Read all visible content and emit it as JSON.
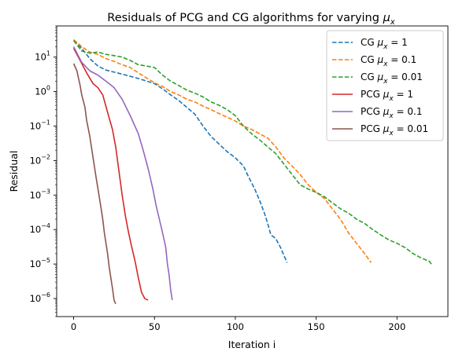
{
  "chart_data": {
    "type": "line",
    "title": "Residuals of PCG and CG algorithms for varying μ_x",
    "title_prefix": "Residuals of PCG and CG algorithms for varying ",
    "title_mu": "μ",
    "title_sub": "x",
    "xlabel": "Iteration i",
    "ylabel": "Residual",
    "yscale": "log",
    "xlim": [
      -10.5,
      231.5
    ],
    "ylim": [
      3e-07,
      80
    ],
    "xticks": [
      0,
      50,
      100,
      150,
      200
    ],
    "xtick_labels": [
      "0",
      "50",
      "100",
      "150",
      "200"
    ],
    "yticks_exponents": [
      -6,
      -5,
      -4,
      -3,
      -2,
      -1,
      0,
      1
    ],
    "ytick_labels": [
      {
        "base": "10",
        "exp": "−6"
      },
      {
        "base": "10",
        "exp": "−5"
      },
      {
        "base": "10",
        "exp": "−4"
      },
      {
        "base": "10",
        "exp": "−3"
      },
      {
        "base": "10",
        "exp": "−2"
      },
      {
        "base": "10",
        "exp": "−1"
      },
      {
        "base": "10",
        "exp": "0"
      },
      {
        "base": "10",
        "exp": "1"
      }
    ],
    "grid": false,
    "legend_position": "upper right",
    "series": [
      {
        "name": "CG μ_x = 1",
        "label_prefix": "CG ",
        "label_value": "1",
        "color": "#1f77b4",
        "dash": true,
        "points": [
          [
            0,
            30
          ],
          [
            5,
            18
          ],
          [
            10,
            9
          ],
          [
            15,
            5.5
          ],
          [
            20,
            4.2
          ],
          [
            30,
            3.2
          ],
          [
            40,
            2.4
          ],
          [
            50,
            1.7
          ],
          [
            55,
            1.2
          ],
          [
            60,
            0.8
          ],
          [
            65,
            0.55
          ],
          [
            70,
            0.35
          ],
          [
            75,
            0.22
          ],
          [
            80,
            0.1
          ],
          [
            85,
            0.05
          ],
          [
            90,
            0.03
          ],
          [
            95,
            0.018
          ],
          [
            100,
            0.012
          ],
          [
            105,
            0.007
          ],
          [
            108,
            0.0035
          ],
          [
            112,
            0.0015
          ],
          [
            115,
            0.0007
          ],
          [
            118,
            0.0003
          ],
          [
            120,
            0.00015
          ],
          [
            122,
            7e-05
          ],
          [
            125,
            5.5e-05
          ],
          [
            128,
            3e-05
          ],
          [
            130,
            1.8e-05
          ],
          [
            132,
            1.1e-05
          ]
        ]
      },
      {
        "name": "CG μ_x = 0.1",
        "label_prefix": "CG ",
        "label_value": "0.1",
        "color": "#ff7f0e",
        "dash": true,
        "points": [
          [
            0,
            32
          ],
          [
            5,
            20
          ],
          [
            10,
            14
          ],
          [
            15,
            12
          ],
          [
            20,
            9
          ],
          [
            25,
            7.5
          ],
          [
            30,
            6
          ],
          [
            35,
            5
          ],
          [
            40,
            3.5
          ],
          [
            45,
            2.5
          ],
          [
            50,
            1.8
          ],
          [
            55,
            1.4
          ],
          [
            60,
            1.0
          ],
          [
            65,
            0.8
          ],
          [
            70,
            0.6
          ],
          [
            75,
            0.5
          ],
          [
            80,
            0.38
          ],
          [
            85,
            0.3
          ],
          [
            90,
            0.23
          ],
          [
            95,
            0.18
          ],
          [
            100,
            0.14
          ],
          [
            105,
            0.1
          ],
          [
            110,
            0.08
          ],
          [
            115,
            0.06
          ],
          [
            120,
            0.045
          ],
          [
            125,
            0.025
          ],
          [
            130,
            0.012
          ],
          [
            135,
            0.007
          ],
          [
            140,
            0.004
          ],
          [
            145,
            0.002
          ],
          [
            150,
            0.0012
          ],
          [
            155,
            0.0008
          ],
          [
            160,
            0.0004
          ],
          [
            165,
            0.0002
          ],
          [
            170,
            8e-05
          ],
          [
            175,
            4e-05
          ],
          [
            180,
            2e-05
          ],
          [
            184,
            1.1e-05
          ]
        ]
      },
      {
        "name": "CG μ_x = 0.01",
        "label_prefix": "CG ",
        "label_value": "0.01",
        "color": "#2ca02c",
        "dash": true,
        "points": [
          [
            0,
            30
          ],
          [
            5,
            15
          ],
          [
            10,
            13
          ],
          [
            15,
            14
          ],
          [
            20,
            12
          ],
          [
            25,
            11
          ],
          [
            30,
            10
          ],
          [
            35,
            8
          ],
          [
            40,
            6
          ],
          [
            45,
            5.5
          ],
          [
            50,
            5
          ],
          [
            55,
            3
          ],
          [
            60,
            2
          ],
          [
            65,
            1.5
          ],
          [
            70,
            1.1
          ],
          [
            75,
            0.9
          ],
          [
            80,
            0.7
          ],
          [
            85,
            0.5
          ],
          [
            90,
            0.4
          ],
          [
            95,
            0.3
          ],
          [
            100,
            0.2
          ],
          [
            105,
            0.1
          ],
          [
            110,
            0.06
          ],
          [
            115,
            0.04
          ],
          [
            120,
            0.025
          ],
          [
            125,
            0.016
          ],
          [
            130,
            0.008
          ],
          [
            135,
            0.004
          ],
          [
            140,
            0.002
          ],
          [
            145,
            0.0015
          ],
          [
            150,
            0.0012
          ],
          [
            155,
            0.0009
          ],
          [
            160,
            0.0006
          ],
          [
            165,
            0.0004
          ],
          [
            170,
            0.0003
          ],
          [
            175,
            0.0002
          ],
          [
            180,
            0.00015
          ],
          [
            185,
            0.0001
          ],
          [
            190,
            7e-05
          ],
          [
            195,
            5e-05
          ],
          [
            200,
            4e-05
          ],
          [
            205,
            3e-05
          ],
          [
            210,
            2e-05
          ],
          [
            215,
            1.5e-05
          ],
          [
            220,
            1.2e-05
          ],
          [
            222,
            9e-06
          ]
        ]
      },
      {
        "name": "PCG μ_x = 1",
        "label_prefix": "PCG ",
        "label_value": "1",
        "color": "#d62728",
        "dash": false,
        "points": [
          [
            0,
            18
          ],
          [
            4,
            8
          ],
          [
            8,
            3.5
          ],
          [
            12,
            1.7
          ],
          [
            15,
            1.3
          ],
          [
            18,
            0.8
          ],
          [
            21,
            0.25
          ],
          [
            24,
            0.08
          ],
          [
            26,
            0.025
          ],
          [
            28,
            0.005
          ],
          [
            30,
            0.001
          ],
          [
            32,
            0.00025
          ],
          [
            34,
            8e-05
          ],
          [
            36,
            3e-05
          ],
          [
            38,
            1.2e-05
          ],
          [
            40,
            4e-06
          ],
          [
            42,
            1.5e-06
          ],
          [
            44,
            1e-06
          ],
          [
            46,
            9e-07
          ]
        ]
      },
      {
        "name": "PCG μ_x = 0.1",
        "label_prefix": "PCG ",
        "label_value": "0.1",
        "color": "#9467bd",
        "dash": false,
        "points": [
          [
            0,
            20
          ],
          [
            5,
            7
          ],
          [
            10,
            4
          ],
          [
            15,
            3
          ],
          [
            20,
            2
          ],
          [
            25,
            1.3
          ],
          [
            30,
            0.6
          ],
          [
            35,
            0.2
          ],
          [
            40,
            0.06
          ],
          [
            43,
            0.02
          ],
          [
            46,
            0.006
          ],
          [
            49,
            0.0015
          ],
          [
            51,
            0.0005
          ],
          [
            53,
            0.0002
          ],
          [
            55,
            8e-05
          ],
          [
            57,
            3e-05
          ],
          [
            58,
            1e-05
          ],
          [
            59,
            5e-06
          ],
          [
            60,
            1.8e-06
          ],
          [
            61,
            9e-07
          ]
        ]
      },
      {
        "name": "PCG μ_x = 0.01",
        "label_prefix": "PCG ",
        "label_value": "0.01",
        "color": "#8c564b",
        "dash": false,
        "points": [
          [
            0,
            6.5
          ],
          [
            2,
            4
          ],
          [
            4,
            1.5
          ],
          [
            5,
            0.8
          ],
          [
            7,
            0.35
          ],
          [
            8,
            0.15
          ],
          [
            10,
            0.05
          ],
          [
            12,
            0.012
          ],
          [
            14,
            0.003
          ],
          [
            16,
            0.0008
          ],
          [
            18,
            0.0002
          ],
          [
            19,
            8e-05
          ],
          [
            21,
            2e-05
          ],
          [
            22,
            8e-06
          ],
          [
            24,
            2e-06
          ],
          [
            25,
            9e-07
          ],
          [
            26,
            7e-07
          ]
        ]
      }
    ]
  }
}
